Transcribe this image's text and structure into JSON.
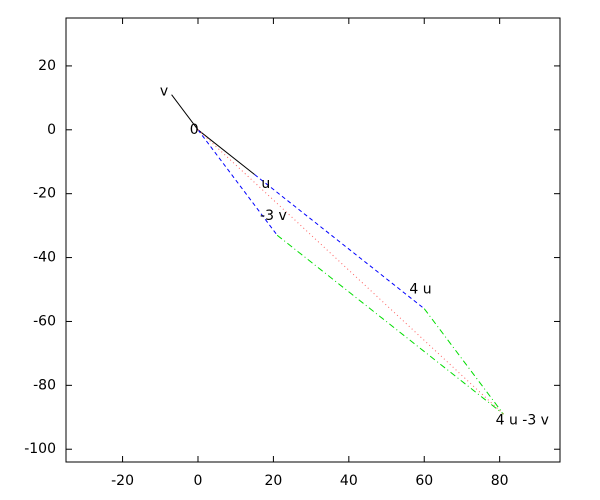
{
  "chart_data": {
    "type": "vector",
    "xlim": [
      -35,
      96
    ],
    "ylim": [
      -104,
      35
    ],
    "xticks": [
      -20,
      0,
      20,
      40,
      60,
      80
    ],
    "yticks": [
      20,
      0,
      -20,
      -40,
      -60,
      -80,
      -100
    ],
    "series": [
      {
        "color": "#000000",
        "dash": "solid",
        "x": [
          0,
          15
        ],
        "y": [
          0,
          -14
        ]
      },
      {
        "color": "#000000",
        "dash": "solid",
        "x": [
          0,
          -7
        ],
        "y": [
          0,
          11
        ]
      },
      {
        "color": "#0000ff",
        "dash": "dashed",
        "x": [
          0,
          21
        ],
        "y": [
          0,
          -33
        ]
      },
      {
        "color": "#0000ff",
        "dash": "dashed",
        "x": [
          15,
          60
        ],
        "y": [
          -14,
          -56
        ]
      },
      {
        "color": "#00dd00",
        "dash": "dashdot",
        "x": [
          21,
          81
        ],
        "y": [
          -33,
          -89
        ]
      },
      {
        "color": "#00dd00",
        "dash": "dashdot",
        "x": [
          60,
          81
        ],
        "y": [
          -56,
          -89
        ]
      },
      {
        "color": "#ff6060",
        "dash": "dotted",
        "x": [
          0,
          81
        ],
        "y": [
          0,
          -89
        ]
      }
    ],
    "annotations": [
      {
        "text": "v",
        "x": -9,
        "y": 12
      },
      {
        "text": "0",
        "x": -1,
        "y": 0
      },
      {
        "text": "u",
        "x": 18,
        "y": -17
      },
      {
        "text": "-3 v",
        "x": 20,
        "y": -27
      },
      {
        "text": "4 u",
        "x": 59,
        "y": -50
      },
      {
        "text": "4 u -3 v",
        "x": 86,
        "y": -91
      }
    ]
  }
}
